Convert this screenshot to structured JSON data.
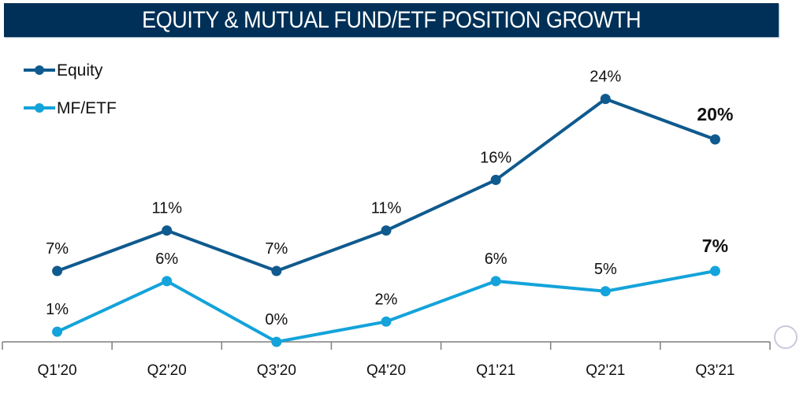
{
  "chart_data": {
    "type": "line",
    "title": "EQUITY & MUTUAL FUND/ETF POSITION GROWTH",
    "xlabel": "",
    "ylabel": "",
    "categories": [
      "Q1'20",
      "Q2'20",
      "Q3'20",
      "Q4'20",
      "Q1'21",
      "Q2'21",
      "Q3'21"
    ],
    "ylim": [
      0,
      25
    ],
    "grid": false,
    "legend_position": "top-left",
    "series": [
      {
        "name": "Equity",
        "color": "#0F5A8E",
        "values": [
          7,
          11,
          7,
          11,
          16,
          24,
          20
        ],
        "labels": [
          "7%",
          "11%",
          "7%",
          "11%",
          "16%",
          "24%",
          "20%"
        ],
        "bold_last_label": true
      },
      {
        "name": "MF/ETF",
        "color": "#14A3DA",
        "values": [
          1,
          6,
          0,
          2,
          6,
          5,
          7
        ],
        "labels": [
          "1%",
          "6%",
          "0%",
          "2%",
          "6%",
          "5%",
          "7%"
        ],
        "bold_last_label": true
      }
    ],
    "axis_color": "#7f7f7f",
    "title_bg": "#003057"
  }
}
